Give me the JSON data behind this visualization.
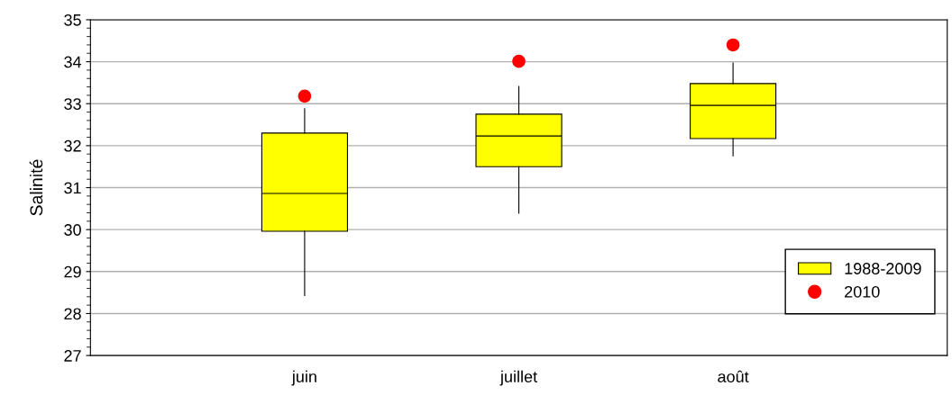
{
  "chart_data": {
    "type": "box",
    "ylabel": "Salinité",
    "categories": [
      "juin",
      "juillet",
      "août"
    ],
    "ylim": [
      27,
      35
    ],
    "yticks": [
      27,
      28,
      29,
      30,
      31,
      32,
      33,
      34,
      35
    ],
    "grid": "y",
    "legend": "bottom right",
    "series": [
      {
        "name": "1988-2009",
        "color": "#ffff00",
        "boxes": [
          {
            "low": 28.43,
            "q1": 29.96,
            "median": 30.86,
            "q3": 32.3,
            "high": 32.88
          },
          {
            "low": 30.39,
            "q1": 31.5,
            "median": 32.23,
            "q3": 32.75,
            "high": 33.41
          },
          {
            "low": 31.76,
            "q1": 32.17,
            "median": 32.96,
            "q3": 33.48,
            "high": 33.97
          }
        ]
      },
      {
        "name": "2010",
        "type": "scatter",
        "color": "#ff0000",
        "marker": "circle",
        "x": [
          "juin",
          "juillet",
          "août"
        ],
        "values": [
          33.18,
          34.01,
          34.4
        ]
      }
    ]
  }
}
